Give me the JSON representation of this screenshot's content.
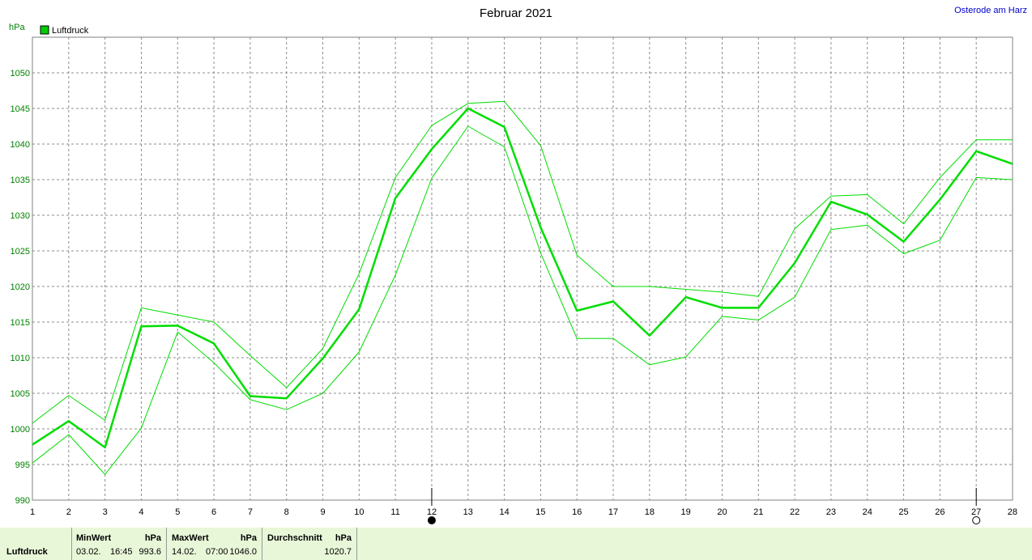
{
  "title": "Februar 2021",
  "location": "Osterode am Harz",
  "y_unit": "hPa",
  "legend": {
    "label": "Luftdruck",
    "color": "#00cc00"
  },
  "chart_data": {
    "type": "line",
    "title": "Februar 2021",
    "ylabel": "hPa",
    "xlabel": "",
    "x": [
      1,
      2,
      3,
      4,
      5,
      6,
      7,
      8,
      9,
      10,
      11,
      12,
      13,
      14,
      15,
      16,
      17,
      18,
      19,
      20,
      21,
      22,
      23,
      24,
      25,
      26,
      27,
      28
    ],
    "xlim": [
      1,
      28
    ],
    "ylim": [
      990,
      1055
    ],
    "yticks": [
      990,
      995,
      1000,
      1005,
      1010,
      1015,
      1020,
      1025,
      1030,
      1035,
      1040,
      1045,
      1050
    ],
    "grid": true,
    "legend_position": "top-left",
    "series": [
      {
        "name": "Luftdruck",
        "role": "mean",
        "color": "#00dd00",
        "values": [
          997.8,
          1001.1,
          997.4,
          1014.4,
          1014.5,
          1012.0,
          1004.6,
          1004.3,
          1009.9,
          1016.8,
          1032.4,
          1039.3,
          1045.0,
          1042.4,
          1028.3,
          1016.6,
          1017.9,
          1013.1,
          1018.5,
          1017.0,
          1017.0,
          1023.3,
          1031.9,
          1030.1,
          1026.3,
          1032.2,
          1039.0,
          1037.2
        ]
      },
      {
        "name": "",
        "role": "max",
        "color": "#00dd00",
        "values": [
          1000.8,
          1004.7,
          1001.2,
          1017.0,
          1016.0,
          1015.0,
          1010.3,
          1005.8,
          1011.3,
          1021.8,
          1035.3,
          1042.6,
          1045.7,
          1046.0,
          1039.8,
          1024.4,
          1020.0,
          1020.0,
          1019.6,
          1019.2,
          1018.6,
          1028.1,
          1032.7,
          1032.9,
          1028.8,
          1035.3,
          1040.6,
          1040.6
        ]
      },
      {
        "name": "",
        "role": "min",
        "color": "#00dd00",
        "values": [
          995.2,
          999.2,
          993.6,
          1000.1,
          1013.6,
          1009.3,
          1004.1,
          1002.7,
          1005.0,
          1010.8,
          1021.6,
          1035.2,
          1042.5,
          1039.6,
          1024.7,
          1012.7,
          1012.7,
          1009.0,
          1010.1,
          1015.8,
          1015.3,
          1018.5,
          1028.0,
          1028.6,
          1024.6,
          1026.5,
          1035.3,
          1035.0
        ]
      }
    ],
    "markers": [
      {
        "x": 12,
        "style": "filled-circle"
      },
      {
        "x": 27,
        "style": "open-circle"
      }
    ]
  },
  "stats": {
    "label": "Luftdruck",
    "min": {
      "header": "MinWert",
      "unit": "hPa",
      "date": "03.02.",
      "time": "16:45",
      "value": "993.6"
    },
    "max": {
      "header": "MaxWert",
      "unit": "hPa",
      "date": "14.02.",
      "time": "07:00",
      "value": "1046.0"
    },
    "avg": {
      "header": "Durchschnitt",
      "unit": "hPa",
      "value": "1020.7"
    }
  }
}
